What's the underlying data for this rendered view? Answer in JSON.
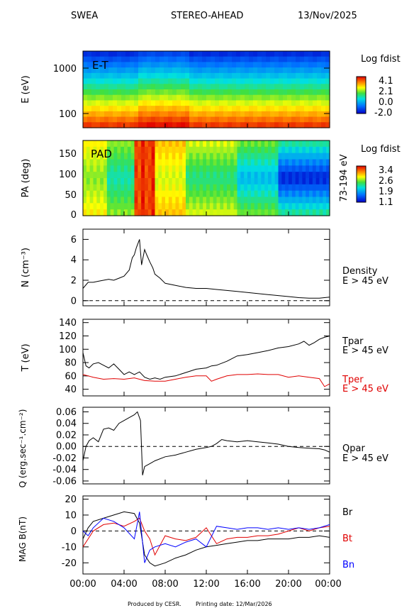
{
  "header": {
    "instrument": "SWEA",
    "spacecraft": "STEREO-AHEAD",
    "date": "13/Nov/2025"
  },
  "footer": {
    "produced_by": "Produced by CESR.",
    "printing_date": "Printing date: 12/Mar/2026"
  },
  "colors": {
    "black": "#000000",
    "red": "#e00000",
    "blue": "#0000ff"
  },
  "time_axis": {
    "ticks": [
      "00:00",
      "04:00",
      "08:00",
      "12:00",
      "16:00",
      "20:00",
      "00:00"
    ]
  },
  "chart_data": [
    {
      "id": "et",
      "type": "heatmap",
      "inset_label": "E-T",
      "ylabel": "E (eV)",
      "yscale": "log",
      "ytick_labels": [
        "1000",
        "100"
      ],
      "colorbar": {
        "title": "Log fdist",
        "ticks": [
          "4.1",
          "2.1",
          "0.0",
          "-2.0"
        ]
      }
    },
    {
      "id": "pad",
      "type": "heatmap",
      "inset_label": "PAD",
      "ylabel": "PA (deg)",
      "ytick_labels": [
        "150",
        "100",
        "50",
        "0"
      ],
      "right_label": "73-194 eV",
      "colorbar": {
        "title": "Log fdist",
        "ticks": [
          "3.4",
          "2.6",
          "1.9",
          "1.1"
        ]
      }
    },
    {
      "id": "density",
      "type": "line",
      "ylabel": "N (cm⁻³)",
      "ylim": [
        -0.5,
        7
      ],
      "ytick_labels": [
        "6",
        "4",
        "2",
        "0"
      ],
      "reference_line": 0,
      "series": [
        {
          "name": "Density",
          "color": "#000000",
          "x": [
            0,
            0.5,
            1,
            1.5,
            2,
            2.5,
            3,
            3.5,
            4,
            4.5,
            4.8,
            5,
            5.2,
            5.5,
            5.7,
            6,
            6.2,
            6.5,
            6.8,
            7,
            7.5,
            8,
            9,
            10,
            11,
            12,
            13,
            14,
            15,
            16,
            17,
            18,
            19,
            20,
            21,
            22,
            23,
            24
          ],
          "values": [
            1.2,
            1.8,
            1.8,
            1.9,
            2.0,
            2.1,
            2.0,
            2.2,
            2.4,
            3.0,
            4.2,
            4.5,
            5.2,
            6.0,
            3.5,
            5.0,
            4.5,
            3.8,
            3.2,
            2.6,
            2.2,
            1.7,
            1.5,
            1.3,
            1.2,
            1.2,
            1.1,
            1.0,
            0.9,
            0.8,
            0.7,
            0.6,
            0.5,
            0.4,
            0.3,
            0.25,
            0.25,
            0.35
          ]
        }
      ],
      "label": [
        "Density",
        "E > 45 eV"
      ]
    },
    {
      "id": "temperature",
      "type": "line",
      "ylabel": "T (eV)",
      "ylim": [
        30,
        145
      ],
      "ytick_labels": [
        "140",
        "120",
        "100",
        "80",
        "60",
        "40"
      ],
      "series": [
        {
          "name": "Tpar",
          "color": "#000000",
          "x": [
            0,
            0.3,
            0.6,
            1,
            1.5,
            2,
            2.5,
            3,
            3.5,
            4,
            4.5,
            5,
            5.5,
            6,
            6.5,
            7,
            7.5,
            8,
            9,
            10,
            11,
            12,
            12.5,
            13,
            14,
            15,
            16,
            17,
            18,
            19,
            20,
            21,
            21.5,
            22,
            22.5,
            23,
            23.5,
            24
          ],
          "values": [
            95,
            75,
            72,
            78,
            80,
            76,
            72,
            78,
            70,
            62,
            66,
            62,
            66,
            58,
            55,
            57,
            55,
            58,
            60,
            65,
            70,
            72,
            75,
            76,
            82,
            90,
            92,
            95,
            98,
            102,
            104,
            108,
            112,
            106,
            110,
            115,
            118,
            120
          ]
        },
        {
          "name": "Tper",
          "color": "#e00000",
          "x": [
            0,
            1,
            2,
            3,
            4,
            5,
            6,
            7,
            8,
            9,
            10,
            11,
            12,
            12.5,
            13,
            14,
            15,
            16,
            17,
            18,
            19,
            20,
            21,
            22,
            23,
            23.5,
            24
          ],
          "values": [
            62,
            58,
            55,
            56,
            55,
            57,
            53,
            52,
            52,
            55,
            58,
            60,
            60,
            52,
            55,
            60,
            62,
            62,
            63,
            62,
            62,
            58,
            60,
            58,
            56,
            44,
            48
          ]
        }
      ],
      "label": [
        "E > 45 eV"
      ]
    },
    {
      "id": "heatflux",
      "type": "line",
      "ylabel": "Q (erg.sec⁻¹.cm⁻²)",
      "ylim": [
        -0.065,
        0.068
      ],
      "ytick_labels": [
        "0.06",
        "0.04",
        "0.02",
        "0.00",
        "-0.02",
        "-0.04",
        "-0.06"
      ],
      "reference_line": 0,
      "series": [
        {
          "name": "Qpar",
          "color": "#000000",
          "x": [
            0,
            0.3,
            0.6,
            1,
            1.5,
            2,
            2.5,
            3,
            3.5,
            4,
            4.5,
            5,
            5.3,
            5.6,
            5.8,
            6,
            6.5,
            7,
            8,
            9,
            10,
            11,
            12,
            12.5,
            13,
            13.5,
            14,
            15,
            16,
            17,
            18,
            19,
            20,
            21,
            22,
            23,
            23.5,
            24
          ],
          "values": [
            -0.025,
            0.0,
            0.01,
            0.015,
            0.008,
            0.03,
            0.032,
            0.028,
            0.04,
            0.045,
            0.05,
            0.055,
            0.06,
            0.045,
            -0.05,
            -0.035,
            -0.03,
            -0.025,
            -0.018,
            -0.015,
            -0.01,
            -0.005,
            -0.002,
            0.0,
            0.005,
            0.012,
            0.01,
            0.008,
            0.01,
            0.008,
            0.006,
            0.004,
            0.0,
            -0.002,
            -0.003,
            -0.004,
            -0.006,
            -0.01
          ]
        }
      ],
      "label": [
        "Qpar",
        "E > 45 eV"
      ]
    },
    {
      "id": "mag",
      "type": "line",
      "ylabel": "MAG B(nT)",
      "ylim": [
        -27,
        22
      ],
      "ytick_labels": [
        "20",
        "10",
        "0",
        "-10",
        "-20"
      ],
      "reference_line": 0,
      "series": [
        {
          "name": "Br",
          "color": "#000000",
          "x": [
            0,
            0.5,
            1,
            2,
            3,
            4,
            5,
            5.5,
            6,
            6.5,
            7,
            8,
            9,
            10,
            11,
            12,
            13,
            14,
            15,
            16,
            17,
            18,
            19,
            20,
            21,
            22,
            23,
            24
          ],
          "values": [
            -5,
            2,
            6,
            8,
            10,
            12,
            11,
            5,
            -15,
            -20,
            -22,
            -20,
            -17,
            -15,
            -12,
            -10,
            -9,
            -8,
            -7,
            -6,
            -6,
            -5,
            -5,
            -5,
            -4,
            -4,
            -3,
            -4
          ]
        },
        {
          "name": "Bt",
          "color": "#e00000",
          "x": [
            0,
            0.5,
            1,
            2,
            3,
            4,
            5,
            5.5,
            6,
            6.5,
            7,
            8,
            9,
            10,
            11,
            12,
            13,
            14,
            15,
            16,
            17,
            18,
            19,
            20,
            21,
            22,
            23,
            24
          ],
          "values": [
            -10,
            -5,
            0,
            4,
            5,
            3,
            6,
            8,
            0,
            -5,
            -15,
            -3,
            -5,
            -6,
            -4,
            2,
            -8,
            -5,
            -4,
            -4,
            -3,
            -3,
            -2,
            0,
            2,
            0,
            2,
            3
          ]
        },
        {
          "name": "Bn",
          "color": "#0000ff",
          "x": [
            0,
            0.5,
            1,
            2,
            3,
            4,
            5,
            5.5,
            6,
            6.5,
            7,
            8,
            9,
            10,
            11,
            12,
            13,
            14,
            15,
            16,
            17,
            18,
            19,
            20,
            21,
            22,
            23,
            24
          ],
          "values": [
            0,
            -3,
            2,
            8,
            6,
            2,
            -5,
            12,
            -20,
            -12,
            -10,
            -8,
            -10,
            -7,
            -5,
            -10,
            3,
            2,
            1,
            2,
            2,
            1,
            2,
            1,
            2,
            1,
            2,
            4
          ]
        }
      ]
    }
  ]
}
